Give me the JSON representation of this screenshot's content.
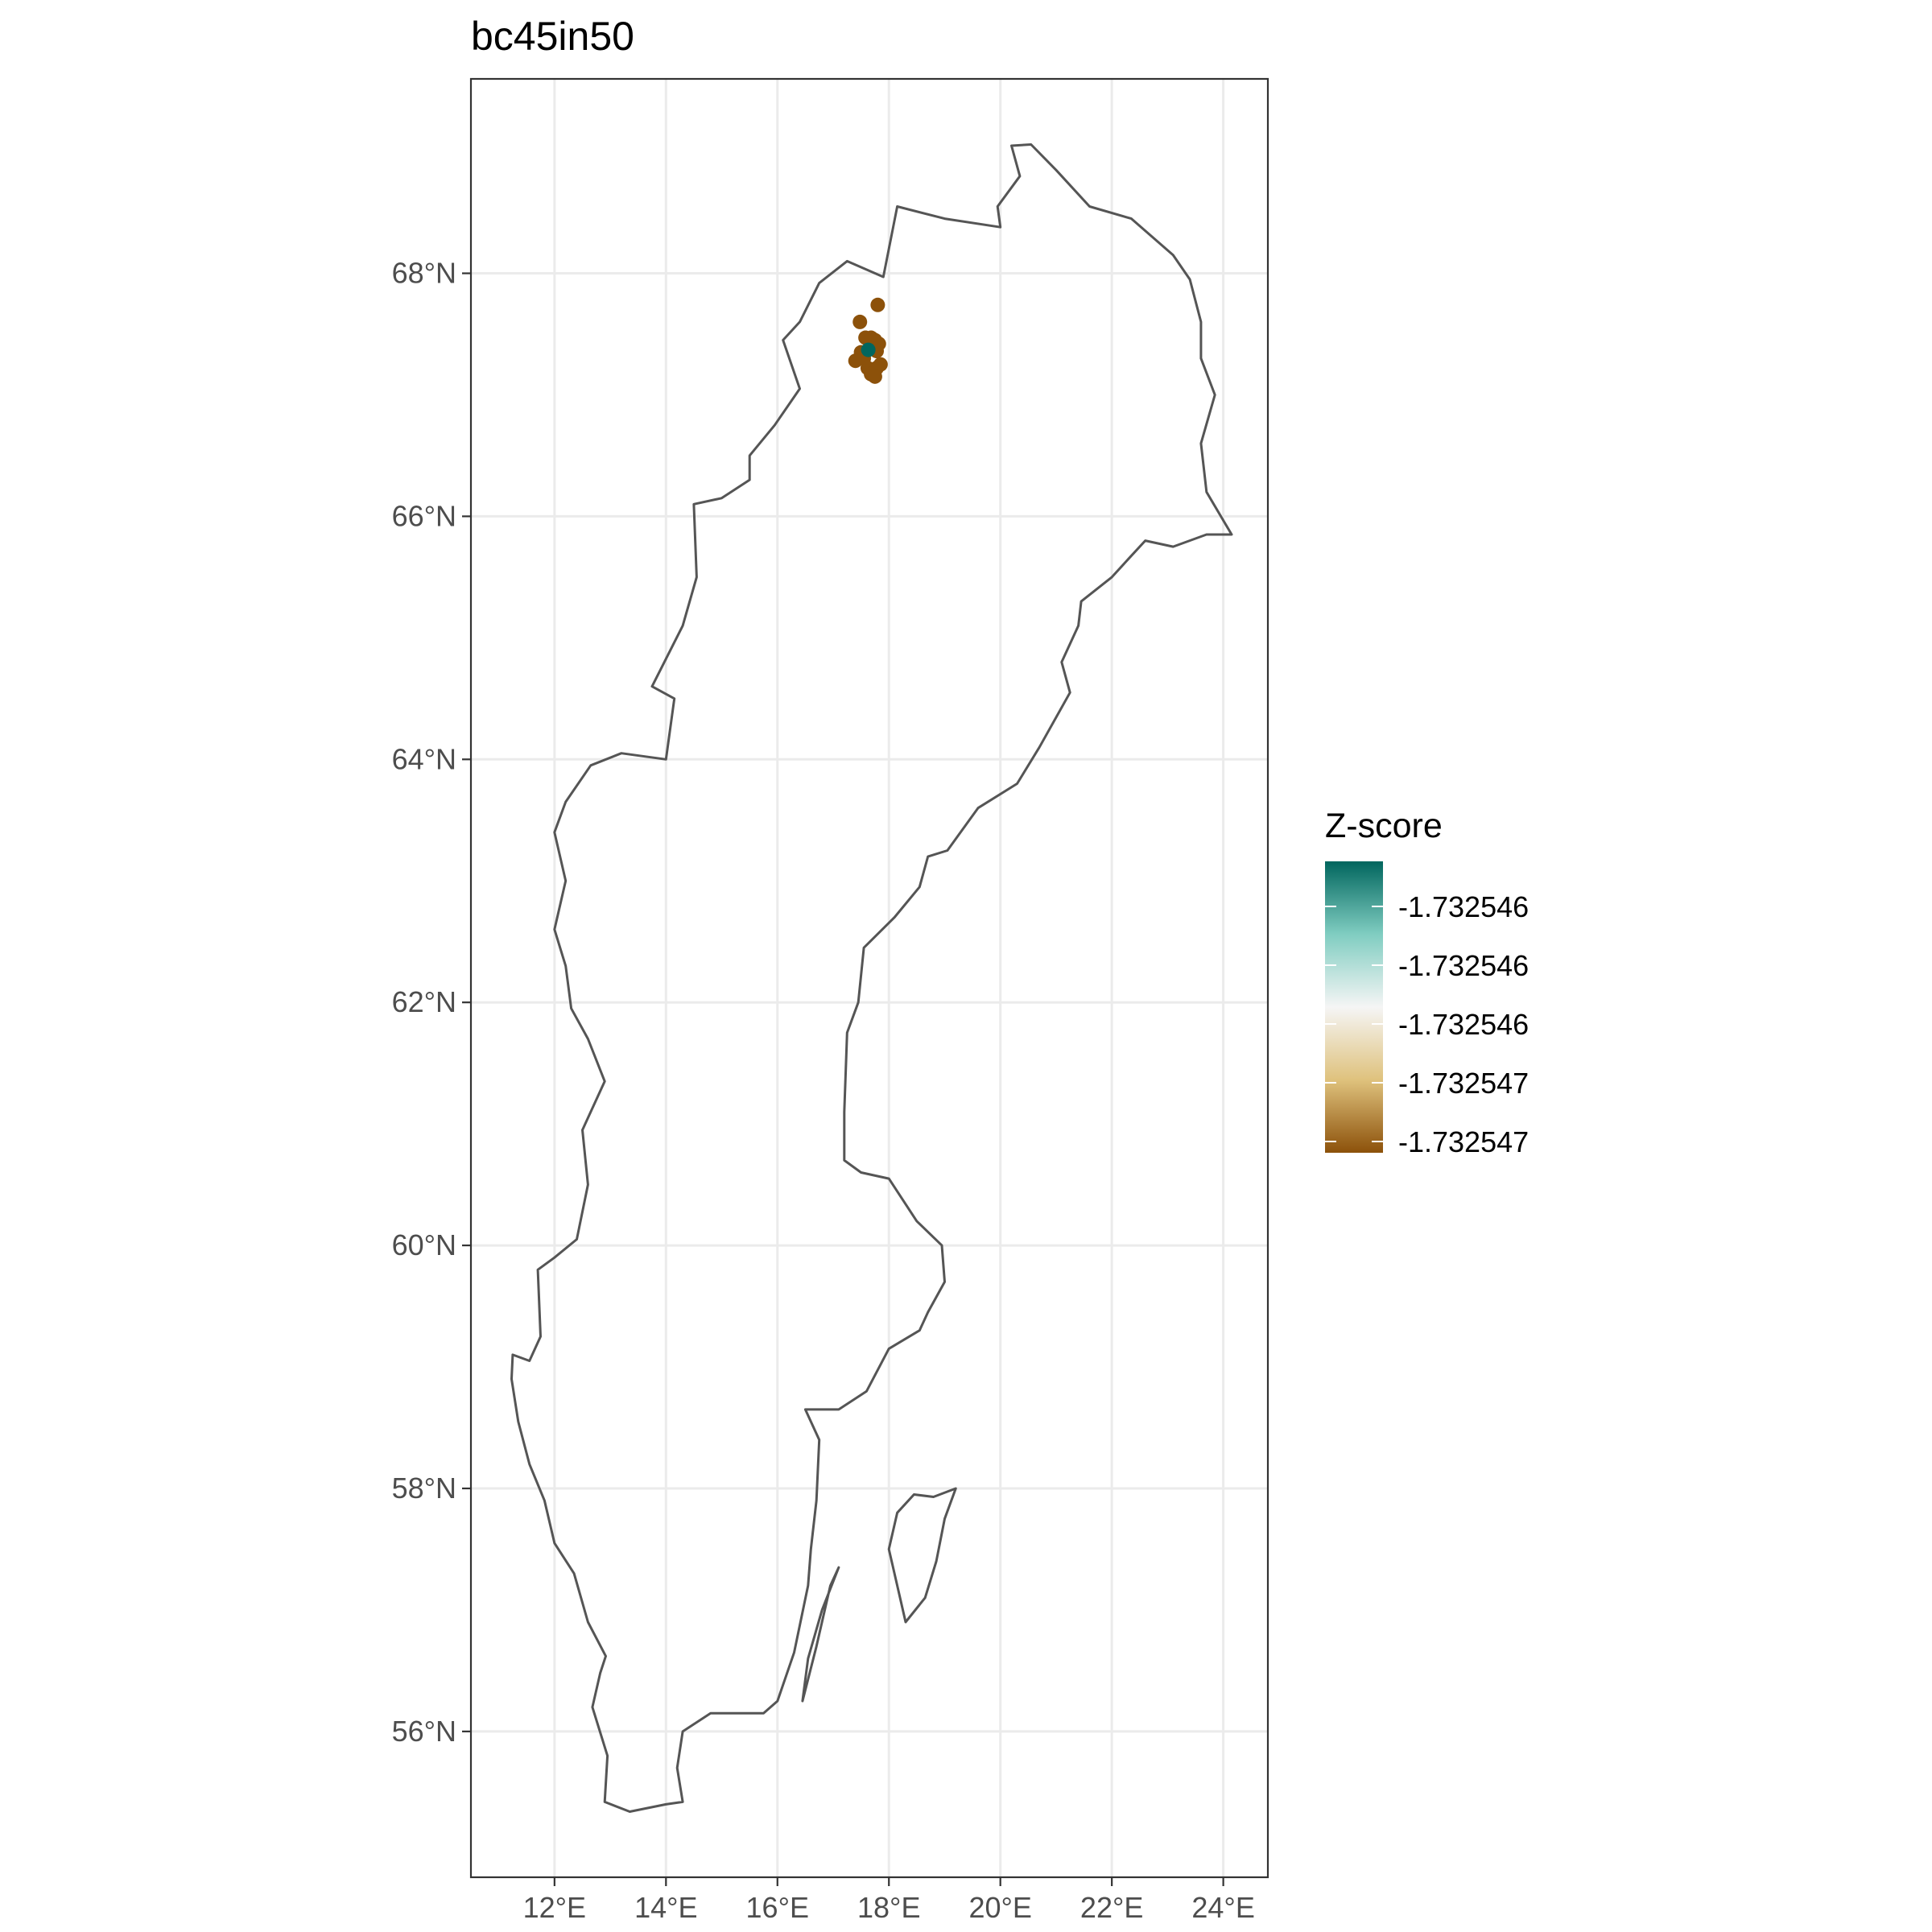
{
  "chart_data": {
    "type": "scatter",
    "title": "bc45in50",
    "xlabel": "",
    "ylabel": "",
    "xlim": [
      10.5,
      24.8
    ],
    "ylim": [
      54.8,
      69.6
    ],
    "x_ticks": [
      {
        "value": 12,
        "label": "12°E"
      },
      {
        "value": 14,
        "label": "14°E"
      },
      {
        "value": 16,
        "label": "16°E"
      },
      {
        "value": 18,
        "label": "18°E"
      },
      {
        "value": 20,
        "label": "20°E"
      },
      {
        "value": 22,
        "label": "22°E"
      },
      {
        "value": 24,
        "label": "24°E"
      }
    ],
    "y_ticks": [
      {
        "value": 56,
        "label": "56°N"
      },
      {
        "value": 58,
        "label": "58°N"
      },
      {
        "value": 60,
        "label": "60°N"
      },
      {
        "value": 62,
        "label": "62°N"
      },
      {
        "value": 64,
        "label": "64°N"
      },
      {
        "value": 66,
        "label": "66°N"
      },
      {
        "value": 68,
        "label": "68°N"
      }
    ],
    "grid": true,
    "legend": {
      "title": "Z-score",
      "position": "right",
      "labels": [
        "-1.732546",
        "-1.732546",
        "-1.732546",
        "-1.732547",
        "-1.732547"
      ],
      "colors": [
        "#01665e",
        "#80cdc1",
        "#f5f5f5",
        "#dfc27d",
        "#8c510a"
      ]
    },
    "points": [
      {
        "lon": 17.8,
        "lat": 67.74,
        "color": "#8c510a"
      },
      {
        "lon": 17.48,
        "lat": 67.6,
        "color": "#8c510a"
      },
      {
        "lon": 17.58,
        "lat": 67.47,
        "color": "#8c510a"
      },
      {
        "lon": 17.68,
        "lat": 67.47,
        "color": "#8c510a"
      },
      {
        "lon": 17.75,
        "lat": 67.45,
        "color": "#8c510a"
      },
      {
        "lon": 17.82,
        "lat": 67.42,
        "color": "#8c510a"
      },
      {
        "lon": 17.5,
        "lat": 67.35,
        "color": "#8c510a"
      },
      {
        "lon": 17.72,
        "lat": 67.38,
        "color": "#8c510a"
      },
      {
        "lon": 17.78,
        "lat": 67.36,
        "color": "#8c510a"
      },
      {
        "lon": 17.4,
        "lat": 67.28,
        "color": "#8c510a"
      },
      {
        "lon": 17.55,
        "lat": 67.3,
        "color": "#8c510a"
      },
      {
        "lon": 17.85,
        "lat": 67.25,
        "color": "#8c510a"
      },
      {
        "lon": 17.62,
        "lat": 67.22,
        "color": "#8c510a"
      },
      {
        "lon": 17.78,
        "lat": 67.22,
        "color": "#8c510a"
      },
      {
        "lon": 17.68,
        "lat": 67.17,
        "color": "#8c510a"
      },
      {
        "lon": 17.75,
        "lat": 67.15,
        "color": "#8c510a"
      },
      {
        "lon": 17.63,
        "lat": 67.37,
        "color": "#01665e"
      }
    ],
    "outline_mainland": [
      [
        15.75,
        56.15
      ],
      [
        14.8,
        56.15
      ],
      [
        14.3,
        56.0
      ],
      [
        14.2,
        55.7
      ],
      [
        14.3,
        55.42
      ],
      [
        14.0,
        55.4
      ],
      [
        13.35,
        55.34
      ],
      [
        12.9,
        55.42
      ],
      [
        12.95,
        55.8
      ],
      [
        12.68,
        56.2
      ],
      [
        12.82,
        56.48
      ],
      [
        12.92,
        56.62
      ],
      [
        12.6,
        56.9
      ],
      [
        12.35,
        57.3
      ],
      [
        12.0,
        57.55
      ],
      [
        11.82,
        57.9
      ],
      [
        11.55,
        58.2
      ],
      [
        11.35,
        58.55
      ],
      [
        11.23,
        58.9
      ],
      [
        11.25,
        59.1
      ],
      [
        11.55,
        59.05
      ],
      [
        11.75,
        59.25
      ],
      [
        11.7,
        59.8
      ],
      [
        12.0,
        59.9
      ],
      [
        12.4,
        60.05
      ],
      [
        12.6,
        60.5
      ],
      [
        12.5,
        60.95
      ],
      [
        12.9,
        61.35
      ],
      [
        12.6,
        61.7
      ],
      [
        12.3,
        61.95
      ],
      [
        12.2,
        62.3
      ],
      [
        12.0,
        62.6
      ],
      [
        12.2,
        63.0
      ],
      [
        12.0,
        63.4
      ],
      [
        12.2,
        63.65
      ],
      [
        12.65,
        63.95
      ],
      [
        13.2,
        64.05
      ],
      [
        14.0,
        64.0
      ],
      [
        14.15,
        64.5
      ],
      [
        13.75,
        64.6
      ],
      [
        14.3,
        65.1
      ],
      [
        14.55,
        65.5
      ],
      [
        14.5,
        66.1
      ],
      [
        15.0,
        66.15
      ],
      [
        15.5,
        66.3
      ],
      [
        15.5,
        66.5
      ],
      [
        15.95,
        66.75
      ],
      [
        16.4,
        67.05
      ],
      [
        16.1,
        67.45
      ],
      [
        16.4,
        67.6
      ],
      [
        16.75,
        67.92
      ],
      [
        17.25,
        68.1
      ],
      [
        17.9,
        67.97
      ],
      [
        18.15,
        68.55
      ],
      [
        19.0,
        68.45
      ],
      [
        20.0,
        68.38
      ],
      [
        19.95,
        68.55
      ],
      [
        20.35,
        68.8
      ],
      [
        20.2,
        69.05
      ],
      [
        20.55,
        69.06
      ],
      [
        21.0,
        68.85
      ],
      [
        21.6,
        68.55
      ],
      [
        22.35,
        68.45
      ],
      [
        23.1,
        68.15
      ],
      [
        23.4,
        67.95
      ],
      [
        23.6,
        67.6
      ],
      [
        23.6,
        67.3
      ],
      [
        23.85,
        67.0
      ],
      [
        23.6,
        66.6
      ],
      [
        23.7,
        66.2
      ],
      [
        24.15,
        65.85
      ],
      [
        23.7,
        65.85
      ],
      [
        23.1,
        65.75
      ],
      [
        22.6,
        65.8
      ],
      [
        22.3,
        65.65
      ],
      [
        22.0,
        65.5
      ],
      [
        21.45,
        65.3
      ],
      [
        21.4,
        65.1
      ],
      [
        21.1,
        64.8
      ],
      [
        21.25,
        64.55
      ],
      [
        20.7,
        64.1
      ],
      [
        20.3,
        63.8
      ],
      [
        19.6,
        63.6
      ],
      [
        19.05,
        63.25
      ],
      [
        18.7,
        63.2
      ],
      [
        18.55,
        62.95
      ],
      [
        18.1,
        62.7
      ],
      [
        17.55,
        62.45
      ],
      [
        17.45,
        62.0
      ],
      [
        17.25,
        61.75
      ],
      [
        17.2,
        61.1
      ],
      [
        17.2,
        60.7
      ],
      [
        17.5,
        60.6
      ],
      [
        18.0,
        60.55
      ],
      [
        18.5,
        60.2
      ],
      [
        18.95,
        60.0
      ],
      [
        19.0,
        59.7
      ],
      [
        18.7,
        59.45
      ],
      [
        18.55,
        59.3
      ],
      [
        18.0,
        59.15
      ],
      [
        17.6,
        58.8
      ],
      [
        17.1,
        58.65
      ],
      [
        16.5,
        58.65
      ],
      [
        16.75,
        58.4
      ],
      [
        16.7,
        57.9
      ],
      [
        16.6,
        57.5
      ],
      [
        16.55,
        57.2
      ],
      [
        16.3,
        56.65
      ],
      [
        16.0,
        56.25
      ],
      [
        15.75,
        56.15
      ]
    ],
    "outline_gotland": [
      [
        18.15,
        57.8
      ],
      [
        18.45,
        57.95
      ],
      [
        18.8,
        57.93
      ],
      [
        19.2,
        58.0
      ],
      [
        19.0,
        57.75
      ],
      [
        18.85,
        57.4
      ],
      [
        18.65,
        57.1
      ],
      [
        18.3,
        56.9
      ],
      [
        18.15,
        57.2
      ],
      [
        18.0,
        57.5
      ],
      [
        18.15,
        57.8
      ]
    ],
    "outline_oland": [
      [
        16.45,
        56.25
      ],
      [
        16.55,
        56.6
      ],
      [
        16.8,
        57.0
      ],
      [
        17.1,
        57.35
      ],
      [
        16.95,
        57.2
      ],
      [
        16.7,
        56.7
      ],
      [
        16.45,
        56.25
      ]
    ]
  }
}
